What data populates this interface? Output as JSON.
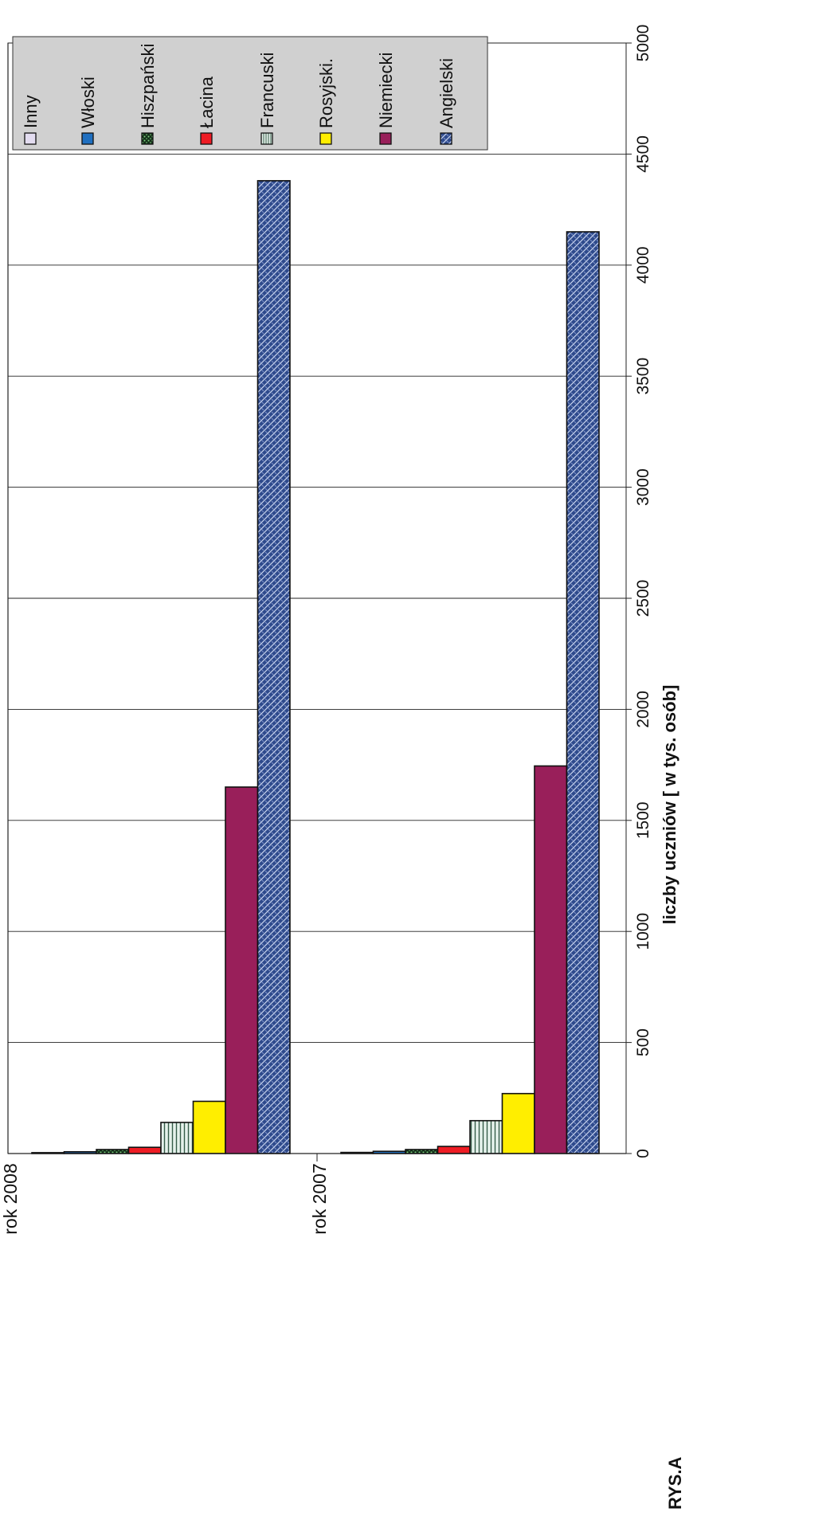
{
  "figure_label": "RYS.A",
  "chart_data": {
    "type": "bar",
    "orientation": "horizontal",
    "categories": [
      "rok  2008",
      "rok  2007"
    ],
    "series": [
      {
        "name": "Angielski",
        "values": [
          4380,
          4150
        ],
        "color": "#2e4a8c",
        "pattern": "weave"
      },
      {
        "name": "Niemiecki",
        "values": [
          1650,
          1745
        ],
        "color": "#991f5a",
        "pattern": "solid"
      },
      {
        "name": "Rosyjski.",
        "values": [
          235,
          270
        ],
        "color": "#ffee00",
        "pattern": "solid"
      },
      {
        "name": "Francuski",
        "values": [
          140,
          148
        ],
        "color": "#c7e0d6",
        "pattern": "vertical-stripes"
      },
      {
        "name": "Łacina",
        "values": [
          28,
          32
        ],
        "color": "#ee1c24",
        "pattern": "solid"
      },
      {
        "name": "Hiszpański",
        "values": [
          18,
          18
        ],
        "color": "#3a7a3a",
        "pattern": "dots"
      },
      {
        "name": "Włoski",
        "values": [
          8,
          10
        ],
        "color": "#1f6fc0",
        "pattern": "solid"
      },
      {
        "name": "Inny",
        "values": [
          4,
          5
        ],
        "color": "#e3dcf0",
        "pattern": "solid"
      }
    ],
    "xlabel": "liczby uczniów [ w tys. osób]",
    "xlim": [
      0,
      5000
    ],
    "xticks": [
      "0",
      "500",
      "1000",
      "1500",
      "2000",
      "2500",
      "3000",
      "3500",
      "4000",
      "4500",
      "5000"
    ],
    "grid": true,
    "legend": "top-right",
    "legend_order": [
      "Inny",
      "Włoski",
      "Hiszpański",
      "Łacina",
      "Francuski",
      "Rosyjski.",
      "Niemiecki",
      "Angielski"
    ],
    "plot_background": "#ffffff",
    "legend_background": "#d0d0d0"
  }
}
